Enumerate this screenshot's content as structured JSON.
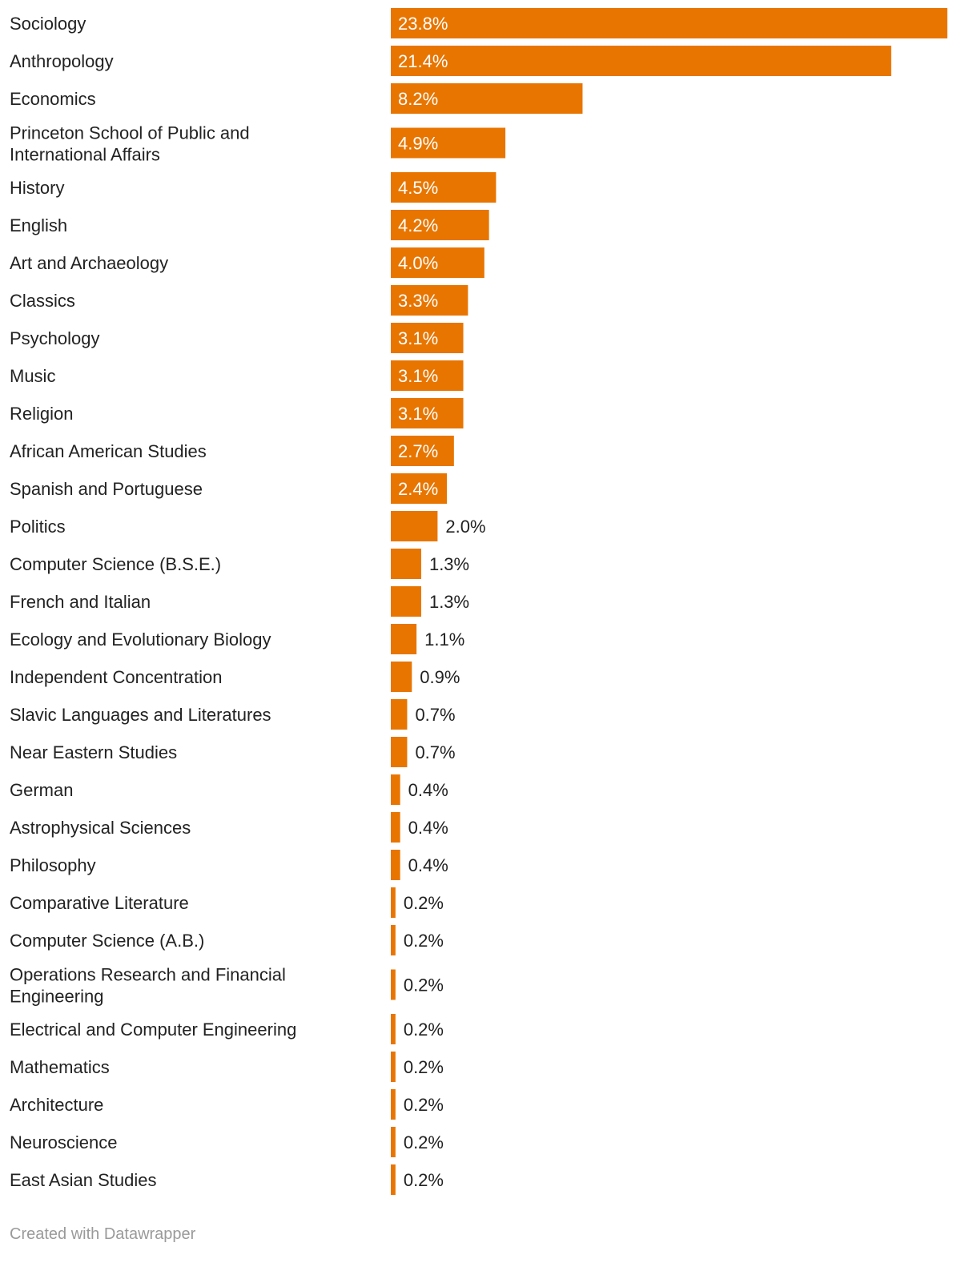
{
  "chart_data": {
    "type": "bar",
    "orientation": "horizontal",
    "title": "",
    "xlabel": "",
    "ylabel": "",
    "value_format": "percent",
    "xlim": [
      0,
      23.8
    ],
    "grid": false,
    "bar_color": "#e87500",
    "inside_label_color": "#ffffff",
    "outside_label_color": "#222222",
    "categories": [
      "Sociology",
      "Anthropology",
      "Economics",
      "Princeton School of Public and International Affairs",
      "History",
      "English",
      "Art and Archaeology",
      "Classics",
      "Psychology",
      "Music",
      "Religion",
      "African American Studies",
      "Spanish and Portuguese",
      "Politics",
      "Computer Science (B.S.E.)",
      "French and Italian",
      "Ecology and Evolutionary Biology",
      "Independent Concentration",
      "Slavic Languages and Literatures",
      "Near Eastern Studies",
      "German",
      "Astrophysical Sciences",
      "Philosophy",
      "Comparative Literature",
      "Computer Science (A.B.)",
      "Operations Research and Financial Engineering",
      "Electrical and Computer Engineering",
      "Mathematics",
      "Architecture",
      "Neuroscience",
      "East Asian Studies"
    ],
    "values": [
      23.8,
      21.4,
      8.2,
      4.9,
      4.5,
      4.2,
      4.0,
      3.3,
      3.1,
      3.1,
      3.1,
      2.7,
      2.4,
      2.0,
      1.3,
      1.3,
      1.1,
      0.9,
      0.7,
      0.7,
      0.4,
      0.4,
      0.4,
      0.2,
      0.2,
      0.2,
      0.2,
      0.2,
      0.2,
      0.2,
      0.2
    ],
    "value_labels": [
      "23.8%",
      "21.4%",
      "8.2%",
      "4.9%",
      "4.5%",
      "4.2%",
      "4.0%",
      "3.3%",
      "3.1%",
      "3.1%",
      "3.1%",
      "2.7%",
      "2.4%",
      "2.0%",
      "1.3%",
      "1.3%",
      "1.1%",
      "0.9%",
      "0.7%",
      "0.7%",
      "0.4%",
      "0.4%",
      "0.4%",
      "0.2%",
      "0.2%",
      "0.2%",
      "0.2%",
      "0.2%",
      "0.2%",
      "0.2%",
      "0.2%"
    ]
  },
  "footer": {
    "credit": "Created with Datawrapper"
  }
}
